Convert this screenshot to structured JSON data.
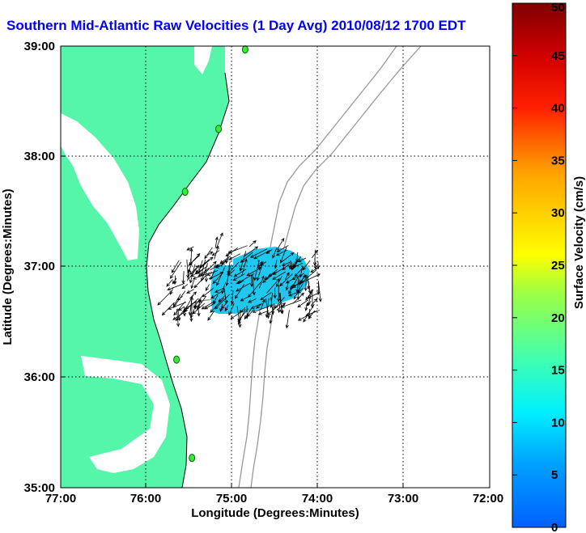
{
  "title": "Southern Mid-Atlantic Raw Velocities (1 Day Avg) 2010/08/12 1700 EDT",
  "colors": {
    "title": "#0000ff",
    "land": "#55f5aa",
    "coast": "#000000",
    "bathymetry": "#999999",
    "grid": "#000000"
  },
  "axes": {
    "xlabel": "Longitude (Degrees:Minutes)",
    "ylabel": "Latitude (Degrees:Minutes)",
    "x_ticks": [
      "77:00",
      "76:00",
      "75:00",
      "74:00",
      "73:00",
      "72:00"
    ],
    "y_ticks": [
      "39:00",
      "38:00",
      "37:00",
      "36:00",
      "35:00"
    ],
    "x_range_deg": [
      -77,
      -72
    ],
    "y_range_deg": [
      35,
      39
    ]
  },
  "colorbar": {
    "label": "Surface Velocity (cm/s)",
    "min": 0,
    "max": 50,
    "ticks": [
      "50",
      "45",
      "40",
      "35",
      "30",
      "25",
      "20",
      "15",
      "10",
      "5",
      "0"
    ]
  },
  "stations": [
    {
      "lon": -74.85,
      "lat": 38.97
    },
    {
      "lon": -75.16,
      "lat": 38.25
    },
    {
      "lon": -75.55,
      "lat": 37.68
    },
    {
      "lon": -75.65,
      "lat": 36.16
    },
    {
      "lon": -75.47,
      "lat": 35.27
    }
  ],
  "velocity_field": {
    "lon_range": [
      -75.7,
      -73.98
    ],
    "lat_range": [
      36.6,
      37.2
    ],
    "speed_range_cms": [
      5,
      13
    ]
  }
}
